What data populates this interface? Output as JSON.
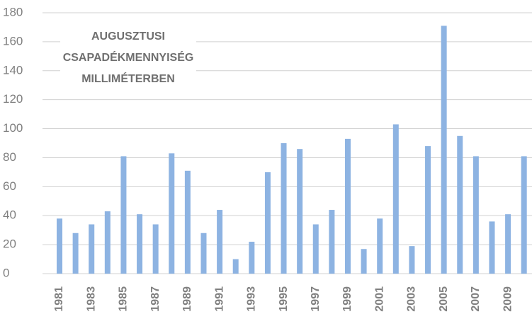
{
  "chart_data": {
    "type": "bar",
    "title": [
      "AUGUSZTUSI",
      "CSAPADÉKMENNYISÉG",
      "MILLIMÉTERBEN"
    ],
    "categories": [
      "1981",
      null,
      "1983",
      null,
      "1985",
      null,
      "1987",
      null,
      "1989",
      null,
      "1991",
      null,
      "1993",
      null,
      "1995",
      null,
      "1997",
      null,
      "1999",
      null,
      "2001",
      null,
      "2003",
      null,
      "2005",
      null,
      "2007",
      null,
      "2009",
      null
    ],
    "values": [
      38,
      28,
      34,
      43,
      81,
      41,
      34,
      83,
      71,
      28,
      44,
      10,
      22,
      70,
      90,
      86,
      34,
      44,
      93,
      17,
      38,
      103,
      19,
      88,
      171,
      95,
      81,
      36,
      41,
      81
    ],
    "color": "#8db3e2",
    "ylim": [
      0,
      180
    ],
    "yticks": [
      0,
      20,
      40,
      60,
      80,
      100,
      120,
      140,
      160,
      180
    ],
    "grid": true
  }
}
